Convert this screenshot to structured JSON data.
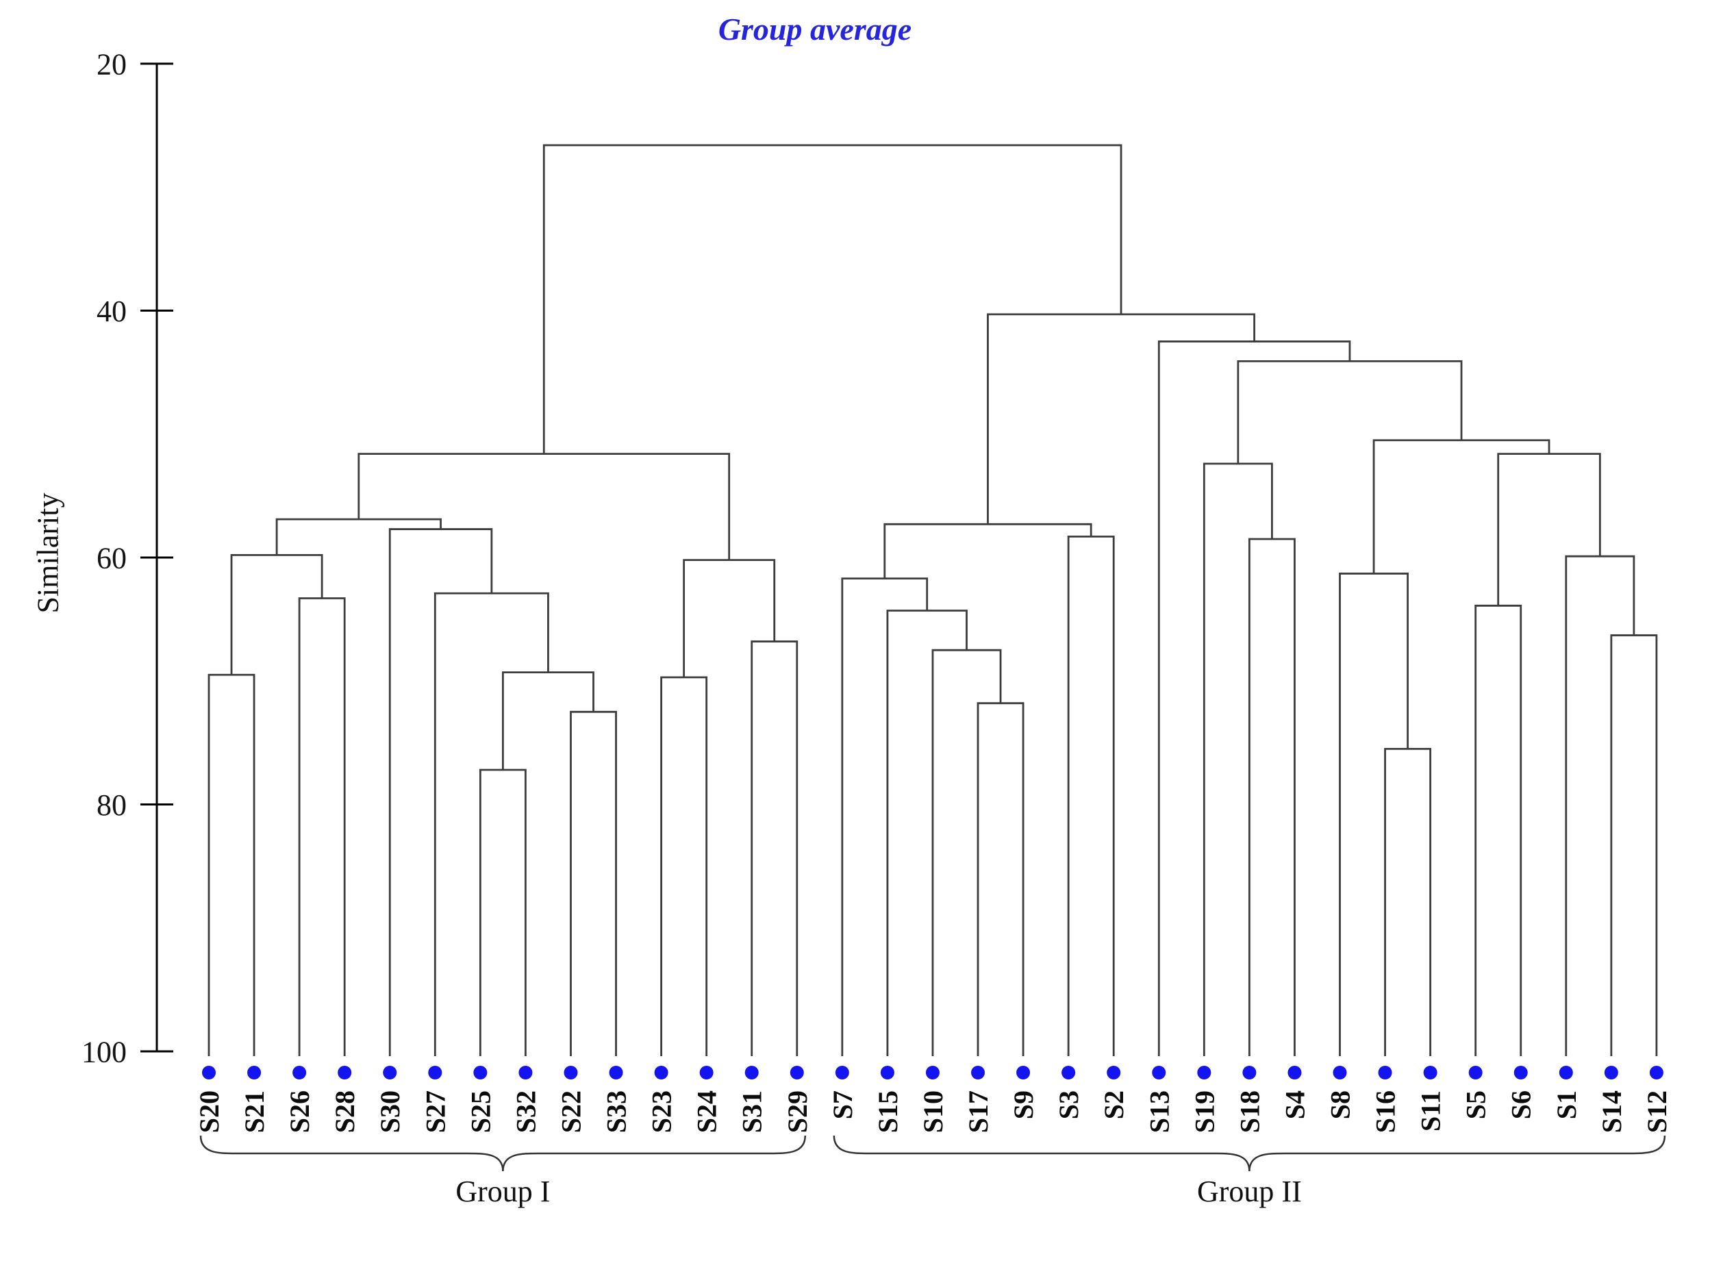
{
  "chart_data": {
    "type": "dendrogram",
    "title": "Group average",
    "ylabel": "Similarity",
    "yticks": [
      20,
      40,
      60,
      80,
      100
    ],
    "ylim": [
      20,
      100
    ],
    "y_increases_downward": true,
    "grid": false,
    "leaf_order": [
      "S20",
      "S21",
      "S26",
      "S28",
      "S30",
      "S27",
      "S25",
      "S32",
      "S22",
      "S33",
      "S23",
      "S24",
      "S31",
      "S29",
      "S7",
      "S15",
      "S10",
      "S17",
      "S9",
      "S3",
      "S2",
      "S13",
      "S19",
      "S18",
      "S4",
      "S8",
      "S16",
      "S11",
      "S5",
      "S6",
      "S1",
      "S14",
      "S12"
    ],
    "groups": [
      {
        "label": "Group I",
        "first_leaf": "S20",
        "last_leaf": "S29"
      },
      {
        "label": "Group II",
        "first_leaf": "S7",
        "last_leaf": "S12"
      }
    ],
    "colors": {
      "line": "#3d3d3d",
      "axis": "#000000",
      "title": "#2525dd",
      "leaf_dot": "#1414f0",
      "text": "#141414",
      "brace": "#333333"
    },
    "linkage": {
      "sim": 26.6,
      "children": [
        {
          "sim": 51.6,
          "children": [
            {
              "sim": 56.9,
              "children": [
                {
                  "sim": 59.8,
                  "children": [
                    {
                      "sim": 69.5,
                      "children": [
                        {
                          "leaf": "S20"
                        },
                        {
                          "leaf": "S21"
                        }
                      ]
                    },
                    {
                      "sim": 63.3,
                      "children": [
                        {
                          "leaf": "S26"
                        },
                        {
                          "leaf": "S28"
                        }
                      ]
                    }
                  ]
                },
                {
                  "sim": 57.7,
                  "children": [
                    {
                      "leaf": "S30"
                    },
                    {
                      "sim": 62.9,
                      "children": [
                        {
                          "leaf": "S27"
                        },
                        {
                          "sim": 69.3,
                          "children": [
                            {
                              "sim": 77.2,
                              "children": [
                                {
                                  "leaf": "S25"
                                },
                                {
                                  "leaf": "S32"
                                }
                              ]
                            },
                            {
                              "sim": 72.5,
                              "children": [
                                {
                                  "leaf": "S22"
                                },
                                {
                                  "leaf": "S33"
                                }
                              ]
                            }
                          ]
                        }
                      ]
                    }
                  ]
                }
              ]
            },
            {
              "sim": 60.2,
              "children": [
                {
                  "sim": 69.7,
                  "children": [
                    {
                      "leaf": "S23"
                    },
                    {
                      "leaf": "S24"
                    }
                  ]
                },
                {
                  "sim": 66.8,
                  "children": [
                    {
                      "leaf": "S31"
                    },
                    {
                      "leaf": "S29"
                    }
                  ]
                }
              ]
            }
          ]
        },
        {
          "sim": 40.3,
          "children": [
            {
              "sim": 57.3,
              "children": [
                {
                  "sim": 61.7,
                  "children": [
                    {
                      "leaf": "S7"
                    },
                    {
                      "sim": 64.3,
                      "children": [
                        {
                          "leaf": "S15"
                        },
                        {
                          "sim": 67.5,
                          "children": [
                            {
                              "leaf": "S10"
                            },
                            {
                              "sim": 71.8,
                              "children": [
                                {
                                  "leaf": "S17"
                                },
                                {
                                  "leaf": "S9"
                                }
                              ]
                            }
                          ]
                        }
                      ]
                    }
                  ]
                },
                {
                  "sim": 58.3,
                  "children": [
                    {
                      "leaf": "S3"
                    },
                    {
                      "leaf": "S2"
                    }
                  ]
                }
              ]
            },
            {
              "sim": 42.5,
              "children": [
                {
                  "leaf": "S13"
                },
                {
                  "sim": 44.1,
                  "children": [
                    {
                      "sim": 52.4,
                      "children": [
                        {
                          "leaf": "S19"
                        },
                        {
                          "sim": 58.5,
                          "children": [
                            {
                              "leaf": "S18"
                            },
                            {
                              "leaf": "S4"
                            }
                          ]
                        }
                      ]
                    },
                    {
                      "sim": 50.5,
                      "children": [
                        {
                          "sim": 61.3,
                          "children": [
                            {
                              "leaf": "S8"
                            },
                            {
                              "sim": 75.5,
                              "children": [
                                {
                                  "leaf": "S16"
                                },
                                {
                                  "leaf": "S11"
                                }
                              ]
                            }
                          ]
                        },
                        {
                          "sim": 51.6,
                          "children": [
                            {
                              "sim": 63.9,
                              "children": [
                                {
                                  "leaf": "S5"
                                },
                                {
                                  "leaf": "S6"
                                }
                              ]
                            },
                            {
                              "sim": 59.9,
                              "children": [
                                {
                                  "leaf": "S1"
                                },
                                {
                                  "sim": 66.3,
                                  "children": [
                                    {
                                      "leaf": "S14"
                                    },
                                    {
                                      "leaf": "S12"
                                    }
                                  ]
                                }
                              ]
                            }
                          ]
                        }
                      ]
                    }
                  ]
                }
              ]
            }
          ]
        }
      ]
    }
  }
}
